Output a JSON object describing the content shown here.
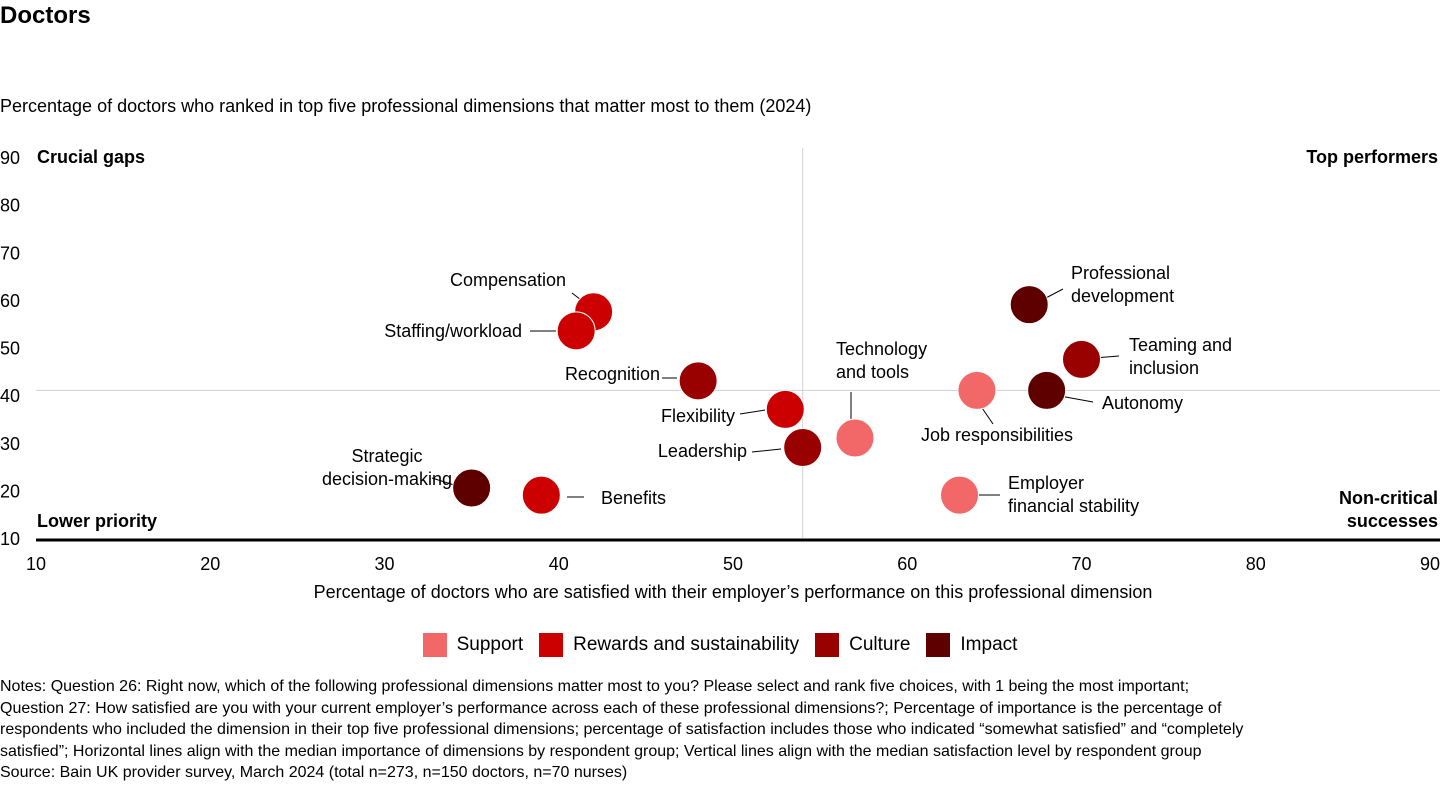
{
  "title": "Doctors",
  "chart_data": {
    "type": "scatter",
    "subtitle": "Percentage of doctors who ranked in top five professional dimensions that matter most to them (2024)",
    "xlabel": "Percentage of doctors who are satisfied with their employer’s performance on this professional dimension",
    "ylabel": "",
    "xlim": [
      10,
      90
    ],
    "ylim": [
      10,
      90
    ],
    "x_ticks": [
      "10",
      "20",
      "30",
      "40",
      "50",
      "60",
      "70",
      "80",
      "90"
    ],
    "y_ticks": [
      "90",
      "80",
      "70",
      "60",
      "50",
      "40",
      "30",
      "20",
      "10"
    ],
    "median_x": 54,
    "median_y": 41,
    "grid": false,
    "quadrant_labels": {
      "top_left": "Crucial gaps",
      "top_right": "Top performers",
      "bottom_left": "Lower priority",
      "bottom_right": [
        "Non-critical",
        "successes"
      ]
    },
    "categories": [
      {
        "name": "Support",
        "color": "#F26868"
      },
      {
        "name": "Rewards and sustainability",
        "color": "#CC0000"
      },
      {
        "name": "Culture",
        "color": "#990000"
      },
      {
        "name": "Impact",
        "color": "#5E0000"
      }
    ],
    "points": [
      {
        "label": [
          "Compensation"
        ],
        "x": 42,
        "y": 57.5,
        "category": "Rewards and sustainability"
      },
      {
        "label": [
          "Staffing/workload"
        ],
        "x": 41,
        "y": 53.5,
        "category": "Rewards and sustainability"
      },
      {
        "label": [
          "Recognition"
        ],
        "x": 48,
        "y": 43,
        "category": "Culture"
      },
      {
        "label": [
          "Flexibility"
        ],
        "x": 53,
        "y": 37,
        "category": "Rewards and sustainability"
      },
      {
        "label": [
          "Leadership"
        ],
        "x": 54,
        "y": 29,
        "category": "Culture"
      },
      {
        "label": [
          "Technology",
          "and tools"
        ],
        "x": 57,
        "y": 31,
        "category": "Support"
      },
      {
        "label": [
          "Strategic",
          "decision-making"
        ],
        "x": 35,
        "y": 20.5,
        "category": "Impact"
      },
      {
        "label": [
          "Benefits"
        ],
        "x": 39,
        "y": 19,
        "category": "Rewards and sustainability"
      },
      {
        "label": [
          "Professional",
          "development"
        ],
        "x": 67,
        "y": 59,
        "category": "Impact"
      },
      {
        "label": [
          "Teaming and",
          "inclusion"
        ],
        "x": 70,
        "y": 47.5,
        "category": "Culture"
      },
      {
        "label": [
          "Autonomy"
        ],
        "x": 68,
        "y": 41,
        "category": "Impact"
      },
      {
        "label": [
          "Job responsibilities"
        ],
        "x": 64,
        "y": 41,
        "category": "Support"
      },
      {
        "label": [
          "Employer",
          "financial stability"
        ],
        "x": 63,
        "y": 19,
        "category": "Support"
      }
    ]
  },
  "notes": [
    "Notes: Question 26: Right now, which of the following professional dimensions matter most to you? Please select and rank five choices, with 1 being the most important;",
    "Question 27: How satisfied are you with your current employer’s performance across each of these professional dimensions?; Percentage of importance is the percentage of",
    "respondents who included the dimension in their top five professional dimensions; percentage of satisfaction includes those who indicated “somewhat satisfied” and “completely",
    "satisfied”; Horizontal lines align with the median importance of dimensions by respondent group; Vertical lines align with the median satisfaction level by respondent group",
    "Source: Bain UK provider survey, March 2024 (total n=273, n=150 doctors, n=70 nurses)"
  ]
}
